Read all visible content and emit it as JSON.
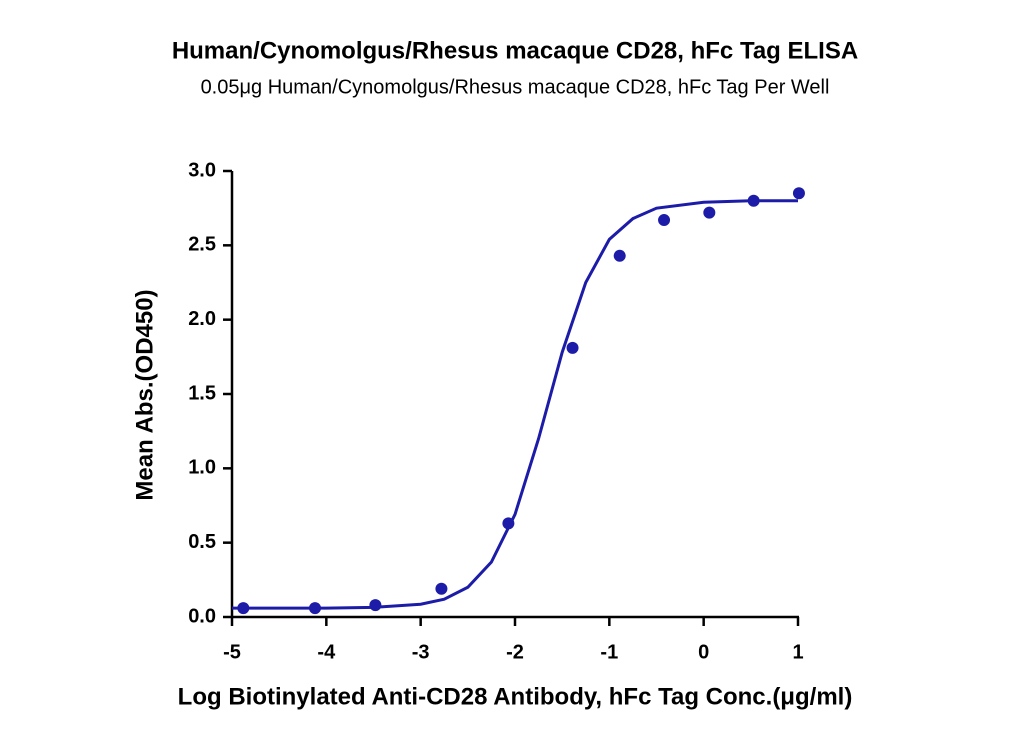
{
  "chart_data": {
    "type": "scatter",
    "title": "Human/Cynomolgus/Rhesus macaque CD28, hFc Tag ELISA",
    "subtitle": "0.05μg Human/Cynomolgus/Rhesus macaque CD28, hFc Tag Per Well",
    "x_label": "Log Biotinylated Anti-CD28 Antibody, hFc Tag Conc.(μg/ml)",
    "y_label": "Mean Abs.(OD450)",
    "xlim": [
      -5,
      1
    ],
    "xticks": [
      -5,
      -4,
      -3,
      -2,
      -1,
      0,
      1
    ],
    "ylim": [
      0,
      3
    ],
    "yticks": [
      {
        "value": 0,
        "label": "0.0"
      },
      {
        "value": 0.5,
        "label": "0.5"
      },
      {
        "value": 1,
        "label": "1.0"
      },
      {
        "value": 1.5,
        "label": "1.5"
      },
      {
        "value": 2,
        "label": "2.0"
      },
      {
        "value": 2.5,
        "label": "2.5"
      },
      {
        "value": 3,
        "label": "3.0"
      }
    ],
    "series": [
      {
        "color": "#1c1ca8",
        "mode": "points",
        "x": [
          -4.88,
          -4.12,
          -3.48,
          -2.78,
          -2.07,
          -1.39,
          -0.89,
          -0.42,
          0.06,
          0.53,
          1.01
        ],
        "values": [
          0.06,
          0.06,
          0.08,
          0.19,
          0.63,
          1.81,
          2.43,
          2.67,
          2.72,
          2.8,
          2.85
        ]
      },
      {
        "color": "#1c1ca8",
        "mode": "line",
        "x": [
          -5,
          -4.5,
          -4,
          -3.5,
          -3,
          -2.75,
          -2.5,
          -2.25,
          -2,
          -1.75,
          -1.5,
          -1.25,
          -1,
          -0.75,
          -0.5,
          0,
          0.5,
          1
        ],
        "values": [
          0.06,
          0.06,
          0.06,
          0.065,
          0.086,
          0.12,
          0.2,
          0.37,
          0.69,
          1.2,
          1.78,
          2.25,
          2.54,
          2.68,
          2.75,
          2.79,
          2.8,
          2.8
        ]
      }
    ]
  }
}
